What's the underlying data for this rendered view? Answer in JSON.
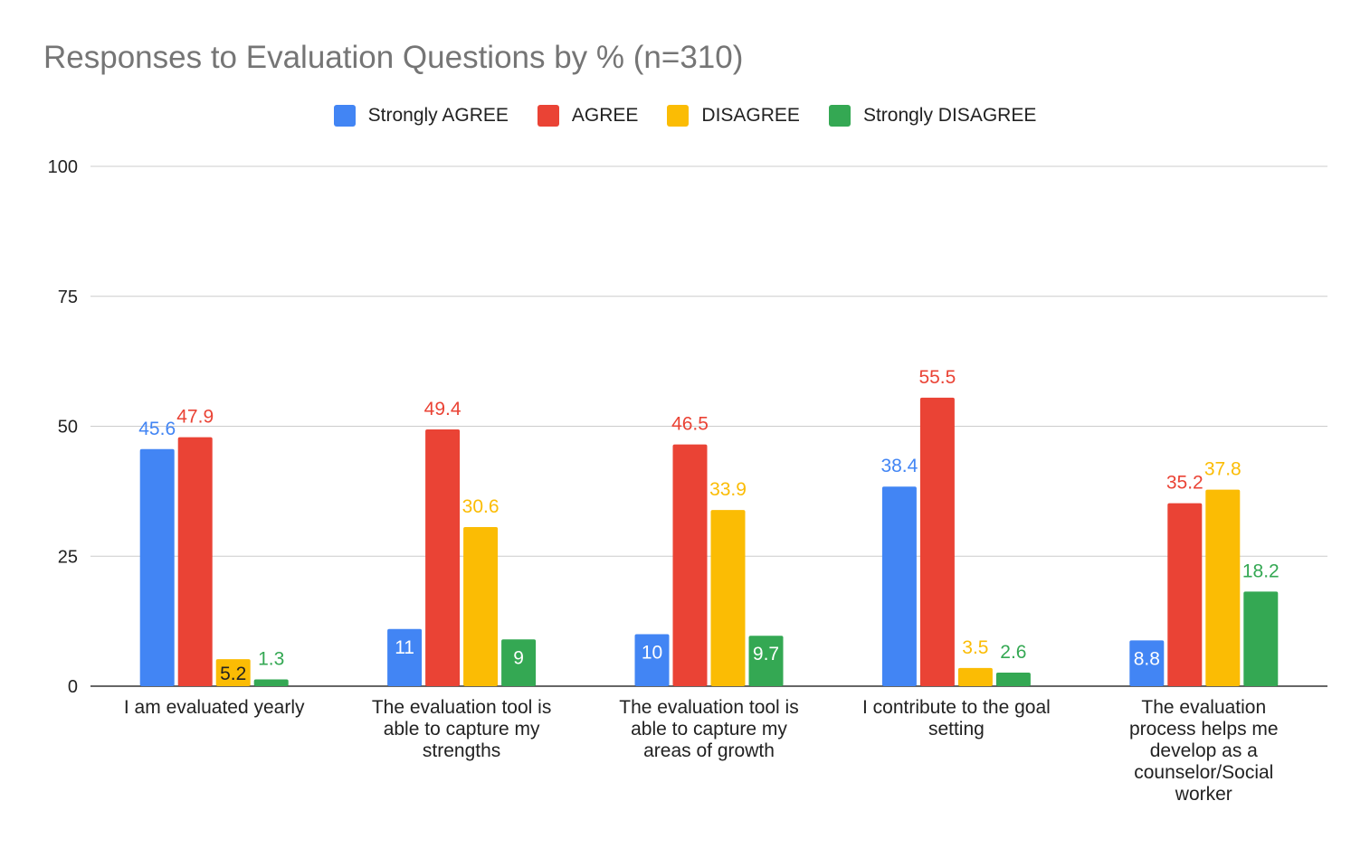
{
  "chart_data": {
    "type": "bar",
    "title": "Responses to Evaluation Questions by % (n=310)",
    "xlabel": "",
    "ylabel": "",
    "ylim": [
      0,
      100
    ],
    "yticks": [
      0,
      25,
      50,
      75,
      100
    ],
    "grid": true,
    "legend_position": "top-center",
    "categories": [
      "I am evaluated yearly",
      "The evaluation tool is able to capture my strengths",
      "The evaluation tool is able to capture my areas of growth",
      "I contribute to the goal setting",
      "The evaluation process helps me develop as a counselor/Social worker"
    ],
    "category_lines": [
      [
        "I am evaluated yearly"
      ],
      [
        "The evaluation tool is",
        "able to capture my",
        "strengths"
      ],
      [
        "The evaluation tool is",
        "able to capture my",
        "areas of growth"
      ],
      [
        "I contribute to the goal",
        "setting"
      ],
      [
        "The evaluation",
        "process helps me",
        "develop as a",
        "counselor/Social",
        "worker"
      ]
    ],
    "series": [
      {
        "name": "Strongly AGREE",
        "color": "#4285f4",
        "values": [
          45.6,
          11,
          10,
          38.4,
          8.8
        ]
      },
      {
        "name": "AGREE",
        "color": "#ea4335",
        "values": [
          47.9,
          49.4,
          46.5,
          55.5,
          35.2
        ]
      },
      {
        "name": "DISAGREE",
        "color": "#fbbc04",
        "values": [
          5.2,
          30.6,
          33.9,
          3.5,
          37.8
        ]
      },
      {
        "name": "Strongly DISAGREE",
        "color": "#34a853",
        "values": [
          1.3,
          9,
          9.7,
          2.6,
          18.2
        ]
      }
    ]
  }
}
